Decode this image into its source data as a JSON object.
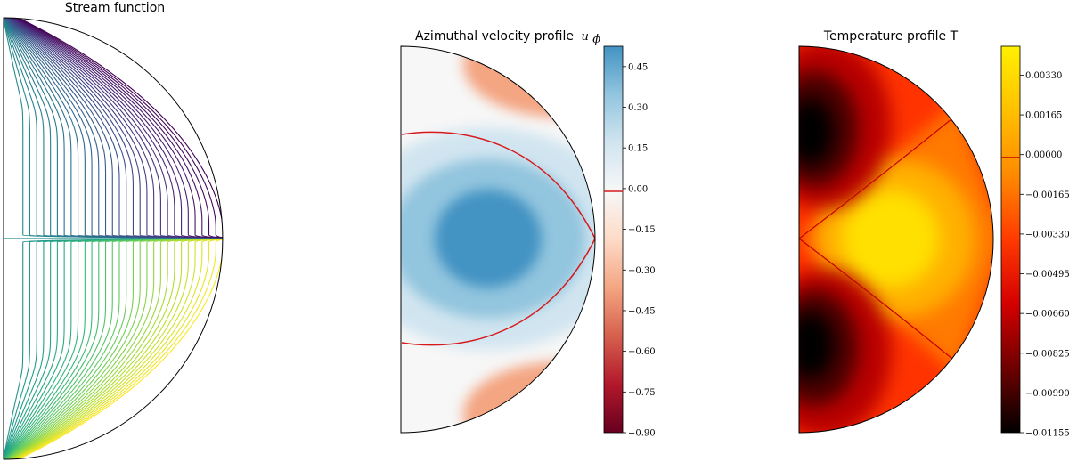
{
  "chart_data": [
    {
      "type": "contour",
      "title": "Stream function",
      "levels": 30,
      "colormap": "viridis",
      "symmetric_about_equator": true,
      "colorbar": false,
      "grid": false
    },
    {
      "type": "heatmap",
      "title": "Azimuthal velocity profile",
      "title_symbol": "u",
      "title_subscript": "ϕ",
      "colormap": "RdBu",
      "colormap_colors": [
        "#67001f",
        "#b2182b",
        "#d6604d",
        "#f4a582",
        "#fddbc7",
        "#f7f7f7",
        "#d1e5f0",
        "#92c5de",
        "#4393c3"
      ],
      "vlim": [
        -0.9,
        0.525
      ],
      "colorbar_ticks": [
        "0.45",
        "0.30",
        "0.15",
        "0.00",
        "−0.15",
        "−0.30",
        "−0.45",
        "−0.60",
        "−0.75",
        "−0.90"
      ],
      "colorbar_tick_values": [
        0.45,
        0.3,
        0.15,
        0.0,
        -0.15,
        -0.3,
        -0.45,
        -0.6,
        -0.75,
        -0.9
      ],
      "zero_contour_color": "#d7191c",
      "grid": false
    },
    {
      "type": "heatmap",
      "title": "Temperature profile T",
      "colormap": "hot",
      "colormap_colors": [
        "#000000",
        "#6e0000",
        "#d40000",
        "#ff3a00",
        "#ff8a00",
        "#ffc000",
        "#fff000"
      ],
      "vlim": [
        -0.01155,
        0.0045
      ],
      "colorbar_ticks": [
        "0.00330",
        "0.00165",
        "0.00000",
        "−0.00165",
        "−0.00330",
        "−0.00495",
        "−0.00660",
        "−0.00825",
        "−0.00990",
        "−0.01155"
      ],
      "colorbar_tick_values": [
        0.0033,
        0.00165,
        0.0,
        -0.00165,
        -0.0033,
        -0.00495,
        -0.0066,
        -0.00825,
        -0.0099,
        -0.01155
      ],
      "zero_contour_color": "#c40000",
      "grid": false
    }
  ]
}
